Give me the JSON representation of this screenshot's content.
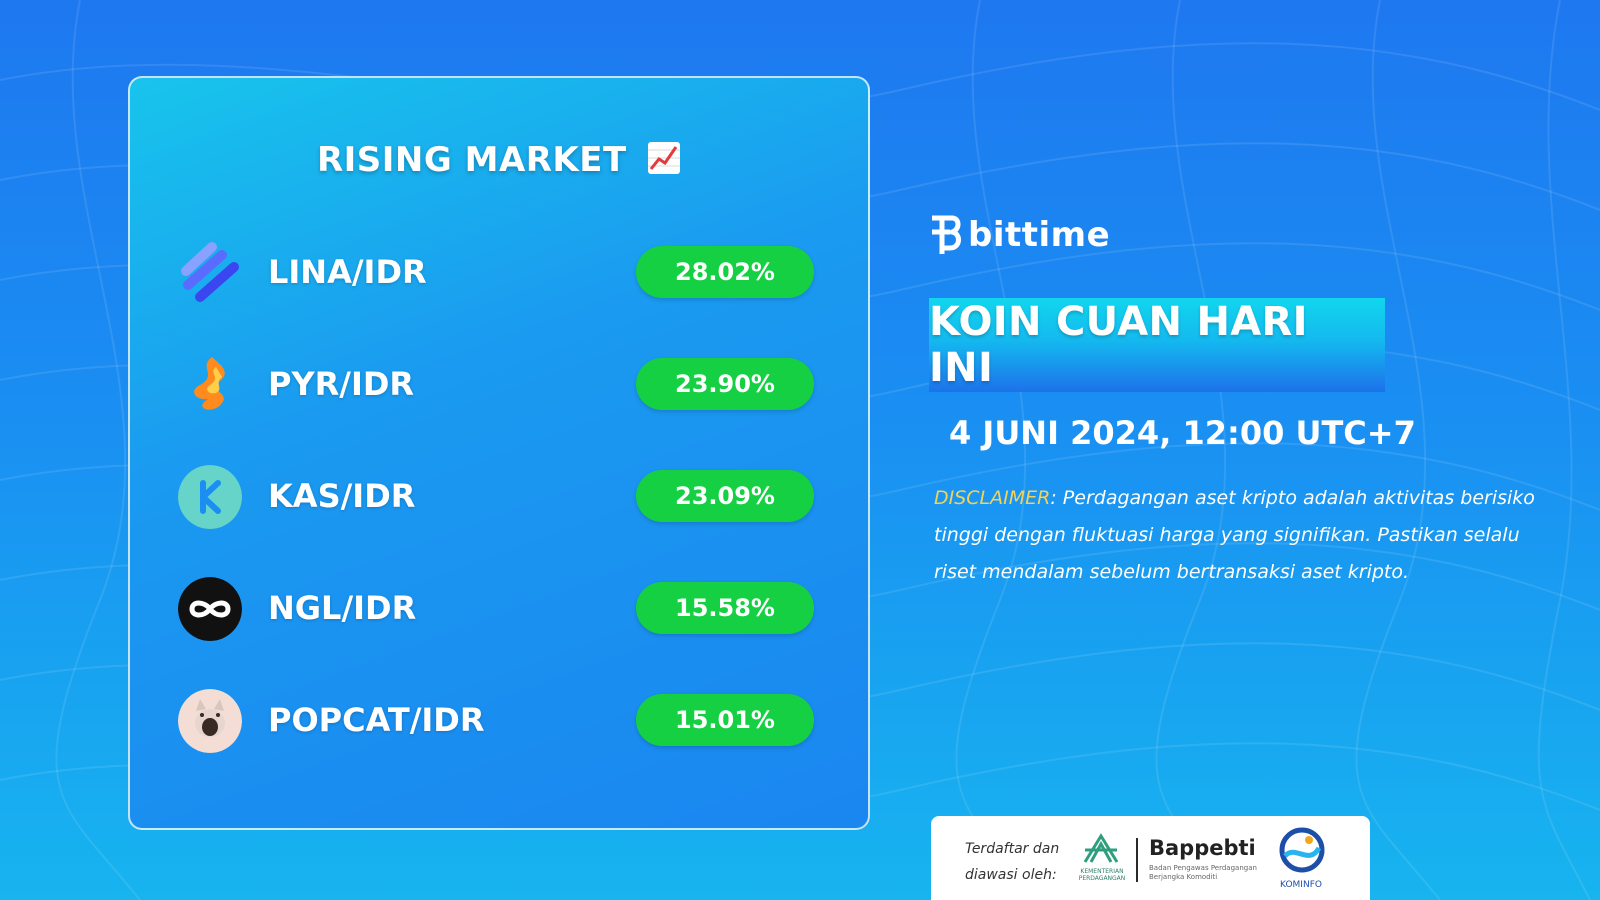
{
  "card": {
    "title": "RISING MARKET",
    "title_emoji_icon": "chart-increasing-icon",
    "rows": [
      {
        "pair": "LINA/IDR",
        "change": "28.02%",
        "logo_icon": "lina-logo-icon"
      },
      {
        "pair": "PYR/IDR",
        "change": "23.90%",
        "logo_icon": "pyr-logo-icon"
      },
      {
        "pair": "KAS/IDR",
        "change": "23.09%",
        "logo_icon": "kas-logo-icon"
      },
      {
        "pair": "NGL/IDR",
        "change": "15.58%",
        "logo_icon": "ngl-logo-icon"
      },
      {
        "pair": "POPCAT/IDR",
        "change": "15.01%",
        "logo_icon": "popcat-logo-icon"
      }
    ]
  },
  "brand": {
    "name": "bittime"
  },
  "banner": {
    "title": "KOIN CUAN HARI INI"
  },
  "datetime": "4 JUNI 2024, 12:00 UTC+7",
  "disclaimer": {
    "label": "DISCLAIMER",
    "text": ": Perdagangan aset kripto adalah aktivitas berisiko tinggi dengan fluktuasi harga yang signifikan. Pastikan selalu riset mendalam sebelum bertransaksi aset kripto."
  },
  "footer": {
    "registered_line1": "Terdaftar dan",
    "registered_line2": "diawasi oleh:",
    "kemendag_label": "KEMENTERIAN PERDAGANGAN",
    "bappebti_name": "Bappebti",
    "bappebti_sub": "Badan Pengawas Perdagangan Berjangka Komoditi",
    "kominfo_label": "KOMINFO"
  },
  "colors": {
    "pill_green": "#16d043",
    "disclaimer_label": "#f1d25a",
    "background_top": "#1e78f0",
    "background_bottom": "#17b4ef"
  }
}
